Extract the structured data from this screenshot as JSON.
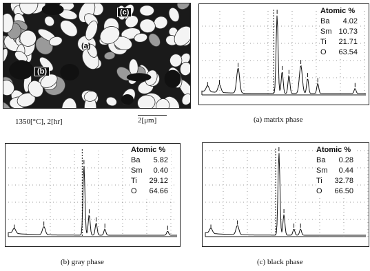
{
  "micrograph": {
    "labels": {
      "a": "(a)",
      "b": "(b)",
      "c": "(c)"
    },
    "condition": "1350[°C], 2[hr]",
    "scale": "2[μm]"
  },
  "panels": [
    {
      "caption": "(a) matrix phase",
      "atomic_header": "Atomic %",
      "rows": [
        {
          "el": "Ba",
          "val": "4.02"
        },
        {
          "el": "Sm",
          "val": "10.73"
        },
        {
          "el": "Ti",
          "val": "21.71"
        },
        {
          "el": "O",
          "val": "63.54"
        }
      ]
    },
    {
      "caption": "(b) gray phase",
      "atomic_header": "Atomic %",
      "rows": [
        {
          "el": "Ba",
          "val": "5.82"
        },
        {
          "el": "Sm",
          "val": "0.40"
        },
        {
          "el": "Ti",
          "val": "29.12"
        },
        {
          "el": "O",
          "val": "64.66"
        }
      ]
    },
    {
      "caption": "(c) black phase",
      "atomic_header": "Atomic %",
      "rows": [
        {
          "el": "Ba",
          "val": "0.28"
        },
        {
          "el": "Sm",
          "val": "0.44"
        },
        {
          "el": "Ti",
          "val": "32.78"
        },
        {
          "el": "O",
          "val": "66.50"
        }
      ]
    }
  ]
}
